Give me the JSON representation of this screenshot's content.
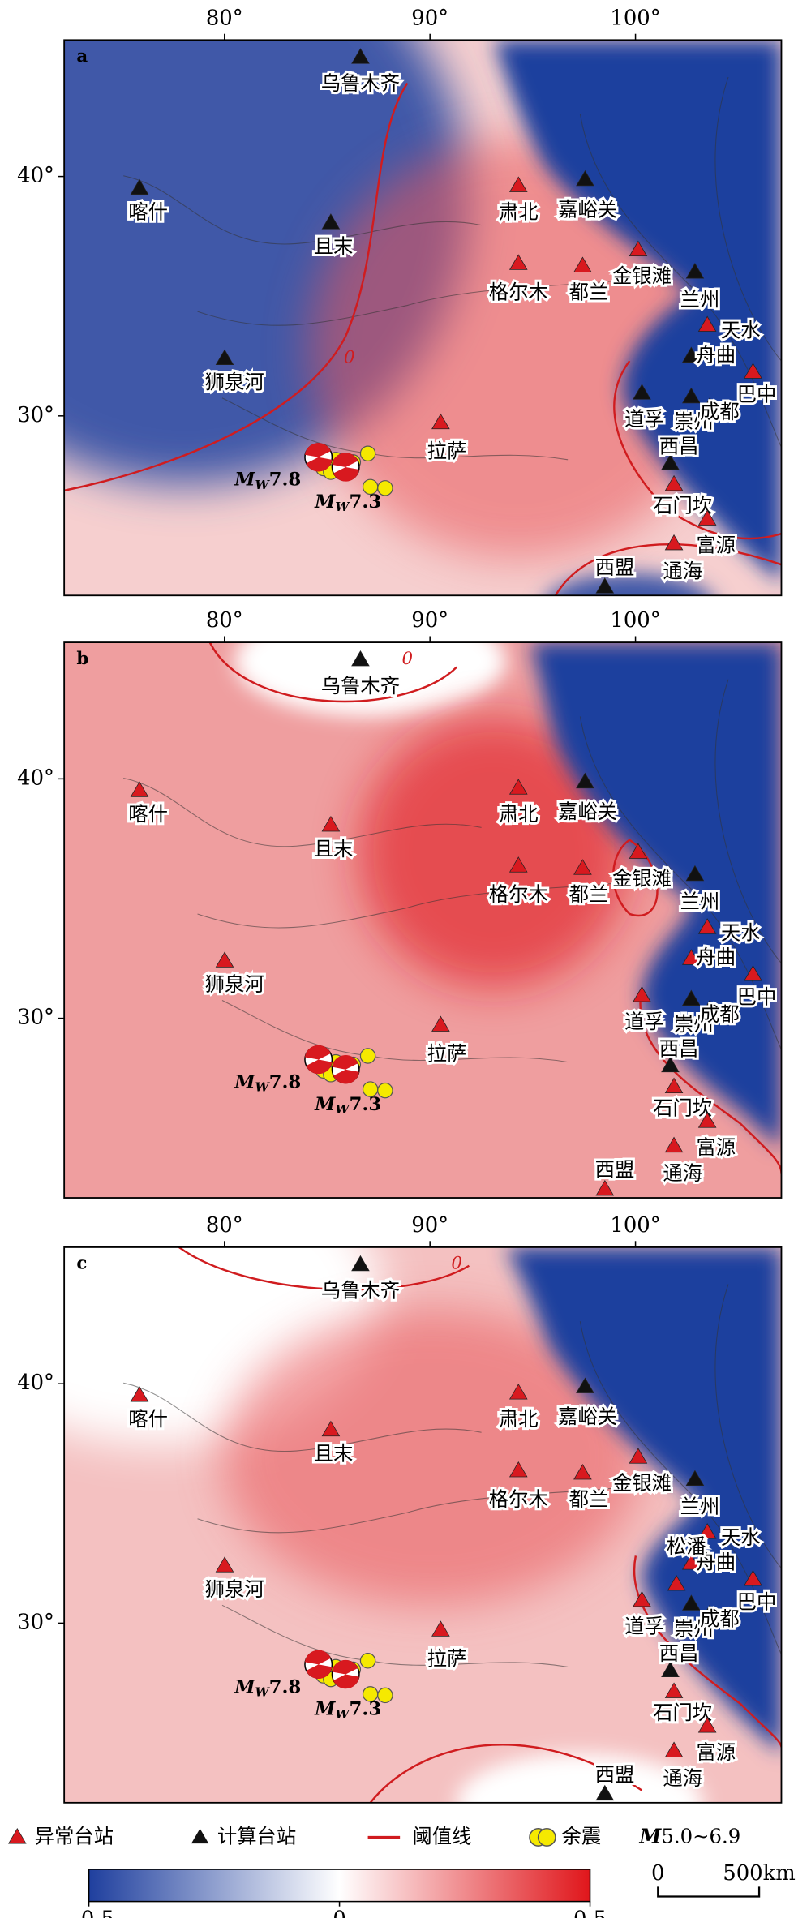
{
  "lon_axis": {
    "lim": [
      72.2,
      107.1
    ],
    "ticks": [
      {
        "value": 80,
        "label": "80°"
      },
      {
        "value": 90,
        "label": "90°"
      },
      {
        "value": 100,
        "label": "100°"
      }
    ]
  },
  "lat_axis": {
    "lim": [
      22.5,
      45.7
    ],
    "ticks": [
      {
        "value": 40,
        "label": "40°"
      },
      {
        "value": 30,
        "label": "30°"
      }
    ]
  },
  "contour_label": "0",
  "events": [
    {
      "prefix": "M",
      "sub": "W",
      "magnitude": 7.8
    },
    {
      "prefix": "M",
      "sub": "W",
      "magnitude": 7.3
    }
  ],
  "panels": [
    {
      "label": "a",
      "stations": [
        {
          "name": "乌鲁木齐",
          "anomalous": false
        },
        {
          "name": "喀什",
          "anomalous": false
        },
        {
          "name": "且末",
          "anomalous": false
        },
        {
          "name": "狮泉河",
          "anomalous": false
        },
        {
          "name": "拉萨",
          "anomalous": true
        },
        {
          "name": "肃北",
          "anomalous": true
        },
        {
          "name": "嘉峪关",
          "anomalous": false
        },
        {
          "name": "格尔木",
          "anomalous": true
        },
        {
          "name": "都兰",
          "anomalous": true
        },
        {
          "name": "金银滩",
          "anomalous": true
        },
        {
          "name": "兰州",
          "anomalous": false
        },
        {
          "name": "天水",
          "anomalous": true
        },
        {
          "name": "舟曲",
          "anomalous": false
        },
        {
          "name": "巴中",
          "anomalous": true
        },
        {
          "name": "道孚",
          "anomalous": false
        },
        {
          "name": "崇州",
          "anomalous": false
        },
        {
          "name": "成都",
          "anomalous": false
        },
        {
          "name": "西昌",
          "anomalous": false
        },
        {
          "name": "石门坎",
          "anomalous": true
        },
        {
          "name": "富源",
          "anomalous": true
        },
        {
          "name": "通海",
          "anomalous": true
        },
        {
          "name": "西盟",
          "anomalous": false
        }
      ]
    },
    {
      "label": "b",
      "stations": [
        {
          "name": "乌鲁木齐",
          "anomalous": false
        },
        {
          "name": "喀什",
          "anomalous": true
        },
        {
          "name": "且末",
          "anomalous": true
        },
        {
          "name": "狮泉河",
          "anomalous": true
        },
        {
          "name": "拉萨",
          "anomalous": true
        },
        {
          "name": "肃北",
          "anomalous": true
        },
        {
          "name": "嘉峪关",
          "anomalous": false
        },
        {
          "name": "格尔木",
          "anomalous": true
        },
        {
          "name": "都兰",
          "anomalous": true
        },
        {
          "name": "金银滩",
          "anomalous": true
        },
        {
          "name": "兰州",
          "anomalous": false
        },
        {
          "name": "天水",
          "anomalous": true
        },
        {
          "name": "舟曲",
          "anomalous": true
        },
        {
          "name": "巴中",
          "anomalous": true
        },
        {
          "name": "道孚",
          "anomalous": true
        },
        {
          "name": "崇州",
          "anomalous": false
        },
        {
          "name": "成都",
          "anomalous": false
        },
        {
          "name": "西昌",
          "anomalous": false
        },
        {
          "name": "石门坎",
          "anomalous": true
        },
        {
          "name": "富源",
          "anomalous": true
        },
        {
          "name": "通海",
          "anomalous": true
        },
        {
          "name": "西盟",
          "anomalous": true
        }
      ]
    },
    {
      "label": "c",
      "stations": [
        {
          "name": "乌鲁木齐",
          "anomalous": false
        },
        {
          "name": "喀什",
          "anomalous": true
        },
        {
          "name": "且末",
          "anomalous": true
        },
        {
          "name": "狮泉河",
          "anomalous": true
        },
        {
          "name": "拉萨",
          "anomalous": true
        },
        {
          "name": "肃北",
          "anomalous": true
        },
        {
          "name": "嘉峪关",
          "anomalous": false
        },
        {
          "name": "格尔木",
          "anomalous": true
        },
        {
          "name": "都兰",
          "anomalous": true
        },
        {
          "name": "金银滩",
          "anomalous": true
        },
        {
          "name": "兰州",
          "anomalous": false
        },
        {
          "name": "天水",
          "anomalous": true
        },
        {
          "name": "舟曲",
          "anomalous": true
        },
        {
          "name": "巴中",
          "anomalous": true
        },
        {
          "name": "道孚",
          "anomalous": true
        },
        {
          "name": "崇州",
          "anomalous": false
        },
        {
          "name": "成都",
          "anomalous": false
        },
        {
          "name": "西昌",
          "anomalous": false
        },
        {
          "name": "石门坎",
          "anomalous": true
        },
        {
          "name": "富源",
          "anomalous": true
        },
        {
          "name": "通海",
          "anomalous": true
        },
        {
          "name": "西盟",
          "anomalous": false
        },
        {
          "name": "松潘",
          "anomalous": true
        }
      ]
    }
  ],
  "legend": {
    "anomalous": "异常台站",
    "computed": "计算台站",
    "threshold": "阈值线",
    "aftershock": "余震",
    "mag_prefix": "M",
    "mag_range": "5.0~6.9"
  },
  "colorbar": {
    "lim": [
      -0.5,
      0.5
    ],
    "ticks": [
      {
        "value": -0.5,
        "label": "−0.5"
      },
      0,
      0.5
    ],
    "colors": [
      "#1f3f9e",
      "#ffffff",
      "#e0161b"
    ]
  },
  "scale_bar": {
    "start": "0",
    "end": "500km"
  }
}
